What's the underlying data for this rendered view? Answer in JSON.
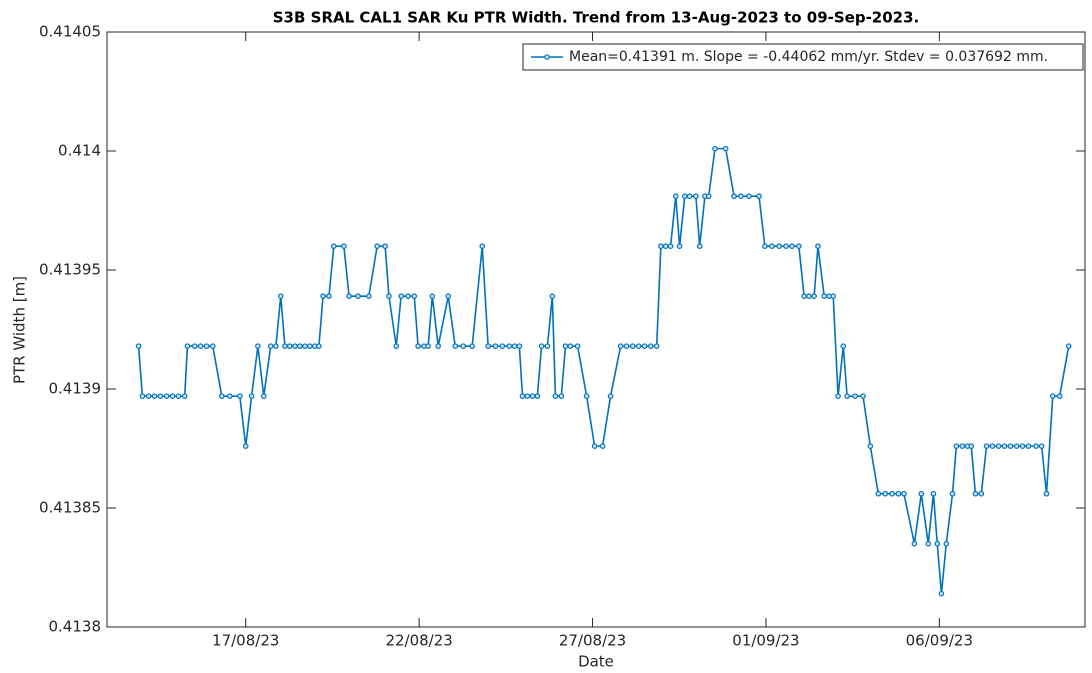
{
  "chart_data": {
    "type": "line",
    "title": "S3B SRAL CAL1 SAR Ku PTR Width. Trend from 13-Aug-2023 to 09-Sep-2023.",
    "x_label": "Date",
    "y_label": "PTR Width [m]",
    "xlim": [
      0,
      28.2
    ],
    "xticks": [
      {
        "value": 4,
        "label": "17/08/23"
      },
      {
        "value": 9,
        "label": "22/08/23"
      },
      {
        "value": 14,
        "label": "27/08/23"
      },
      {
        "value": 19,
        "label": "01/09/23"
      },
      {
        "value": 24,
        "label": "06/09/23"
      }
    ],
    "ylim": [
      0.4138,
      0.41405
    ],
    "yticks": [
      0.4138,
      0.41385,
      0.4139,
      0.41395,
      0.414,
      0.41405
    ],
    "legend_position": "top-right",
    "x": [
      0.91,
      1.02,
      1.2,
      1.37,
      1.54,
      1.72,
      1.89,
      2.06,
      2.24,
      2.32,
      2.53,
      2.7,
      2.87,
      3.05,
      3.31,
      3.54,
      3.83,
      4.0,
      4.17,
      4.35,
      4.52,
      4.72,
      4.87,
      5.01,
      5.13,
      5.27,
      5.42,
      5.56,
      5.71,
      5.85,
      5.99,
      6.11,
      6.23,
      6.4,
      6.54,
      6.83,
      6.98,
      7.24,
      7.55,
      7.79,
      8.02,
      8.13,
      8.34,
      8.48,
      8.68,
      8.86,
      8.97,
      9.14,
      9.26,
      9.38,
      9.55,
      9.84,
      10.04,
      10.27,
      10.53,
      10.82,
      10.99,
      11.2,
      11.4,
      11.6,
      11.75,
      11.89,
      11.98,
      12.12,
      12.27,
      12.41,
      12.53,
      12.7,
      12.84,
      12.93,
      13.1,
      13.22,
      13.36,
      13.57,
      13.83,
      14.06,
      14.29,
      14.52,
      14.81,
      14.98,
      15.16,
      15.33,
      15.5,
      15.68,
      15.85,
      15.97,
      16.11,
      16.25,
      16.4,
      16.51,
      16.66,
      16.8,
      16.98,
      17.09,
      17.24,
      17.35,
      17.53,
      17.84,
      18.08,
      18.28,
      18.51,
      18.8,
      18.97,
      19.17,
      19.38,
      19.58,
      19.75,
      19.95,
      20.1,
      20.24,
      20.39,
      20.5,
      20.68,
      20.82,
      20.94,
      21.08,
      21.23,
      21.34,
      21.57,
      21.8,
      22.01,
      22.24,
      22.44,
      22.64,
      22.82,
      22.98,
      23.28,
      23.48,
      23.68,
      23.83,
      23.94,
      24.06,
      24.2,
      24.38,
      24.49,
      24.66,
      24.81,
      24.92,
      25.04,
      25.21,
      25.36,
      25.53,
      25.71,
      25.88,
      26.05,
      26.23,
      26.4,
      26.57,
      26.79,
      26.95,
      27.09,
      27.27,
      27.47,
      27.73
    ],
    "series": [
      {
        "name": "Mean=0.41391 m. Slope = -0.44062 mm/yr. Stdev = 0.037692 mm.",
        "color": "#0072bd",
        "values": [
          0.413918,
          0.413897,
          0.413897,
          0.413897,
          0.413897,
          0.413897,
          0.413897,
          0.413897,
          0.413897,
          0.413918,
          0.413918,
          0.413918,
          0.413918,
          0.413918,
          0.413897,
          0.413897,
          0.413897,
          0.413876,
          0.413897,
          0.413918,
          0.413897,
          0.413918,
          0.413918,
          0.413939,
          0.413918,
          0.413918,
          0.413918,
          0.413918,
          0.413918,
          0.413918,
          0.413918,
          0.413918,
          0.413939,
          0.413939,
          0.41396,
          0.41396,
          0.413939,
          0.413939,
          0.413939,
          0.41396,
          0.41396,
          0.413939,
          0.413918,
          0.413939,
          0.413939,
          0.413939,
          0.413918,
          0.413918,
          0.413918,
          0.413939,
          0.413918,
          0.413939,
          0.413918,
          0.413918,
          0.413918,
          0.41396,
          0.413918,
          0.413918,
          0.413918,
          0.413918,
          0.413918,
          0.413918,
          0.413897,
          0.413897,
          0.413897,
          0.413897,
          0.413918,
          0.413918,
          0.413939,
          0.413897,
          0.413897,
          0.413918,
          0.413918,
          0.413918,
          0.413897,
          0.413876,
          0.413876,
          0.413897,
          0.413918,
          0.413918,
          0.413918,
          0.413918,
          0.413918,
          0.413918,
          0.413918,
          0.41396,
          0.41396,
          0.41396,
          0.413981,
          0.41396,
          0.413981,
          0.413981,
          0.413981,
          0.41396,
          0.413981,
          0.413981,
          0.414001,
          0.414001,
          0.413981,
          0.413981,
          0.413981,
          0.413981,
          0.41396,
          0.41396,
          0.41396,
          0.41396,
          0.41396,
          0.41396,
          0.413939,
          0.413939,
          0.413939,
          0.41396,
          0.413939,
          0.413939,
          0.413939,
          0.413897,
          0.413918,
          0.413897,
          0.413897,
          0.413897,
          0.413876,
          0.413856,
          0.413856,
          0.413856,
          0.413856,
          0.413856,
          0.413835,
          0.413856,
          0.413835,
          0.413856,
          0.413835,
          0.413814,
          0.413835,
          0.413856,
          0.413876,
          0.413876,
          0.413876,
          0.413876,
          0.413856,
          0.413856,
          0.413876,
          0.413876,
          0.413876,
          0.413876,
          0.413876,
          0.413876,
          0.413876,
          0.413876,
          0.413876,
          0.413876,
          0.413856,
          0.413897,
          0.413897,
          0.413918
        ]
      }
    ]
  }
}
